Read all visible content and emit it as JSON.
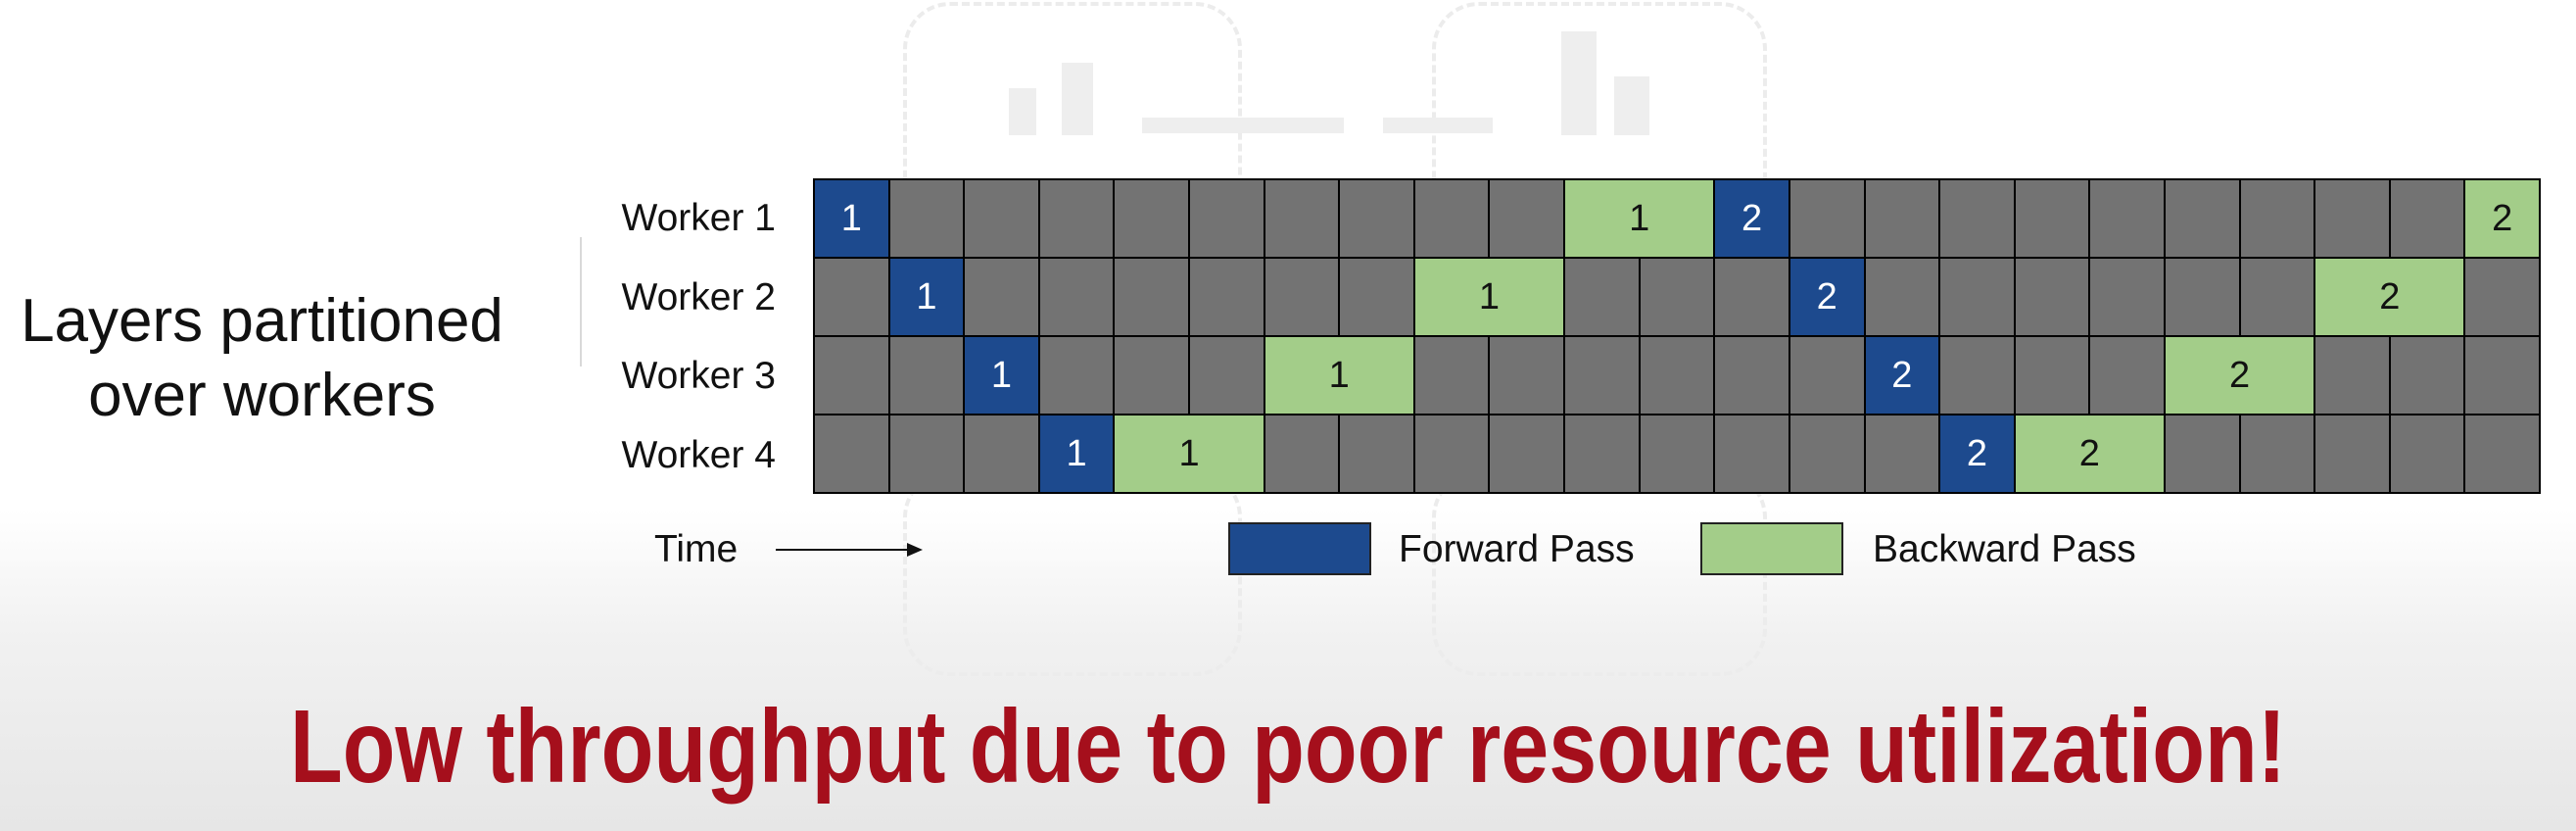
{
  "left_caption": {
    "line1": "Layers partitioned",
    "line2": "over workers"
  },
  "workers": [
    "Worker 1",
    "Worker 2",
    "Worker 3",
    "Worker 4"
  ],
  "columns": 23,
  "schedule": [
    [
      {
        "type": "fwd",
        "label": "1",
        "span": 1
      },
      {
        "type": "idle",
        "span": 9
      },
      {
        "type": "bwd",
        "label": "1",
        "span": 2
      },
      {
        "type": "fwd",
        "label": "2",
        "span": 1
      },
      {
        "type": "idle",
        "span": 9
      },
      {
        "type": "bwd",
        "label": "2",
        "span": 1
      }
    ],
    [
      {
        "type": "idle",
        "span": 1
      },
      {
        "type": "fwd",
        "label": "1",
        "span": 1
      },
      {
        "type": "idle",
        "span": 6
      },
      {
        "type": "bwd",
        "label": "1",
        "span": 2
      },
      {
        "type": "idle",
        "span": 3
      },
      {
        "type": "fwd",
        "label": "2",
        "span": 1
      },
      {
        "type": "idle",
        "span": 6
      },
      {
        "type": "bwd",
        "label": "2",
        "span": 2
      },
      {
        "type": "idle",
        "span": 1
      }
    ],
    [
      {
        "type": "idle",
        "span": 2
      },
      {
        "type": "fwd",
        "label": "1",
        "span": 1
      },
      {
        "type": "idle",
        "span": 3
      },
      {
        "type": "bwd",
        "label": "1",
        "span": 2
      },
      {
        "type": "idle",
        "span": 6
      },
      {
        "type": "fwd",
        "label": "2",
        "span": 1
      },
      {
        "type": "idle",
        "span": 3
      },
      {
        "type": "bwd",
        "label": "2",
        "span": 2
      },
      {
        "type": "idle",
        "span": 3
      }
    ],
    [
      {
        "type": "idle",
        "span": 3
      },
      {
        "type": "fwd",
        "label": "1",
        "span": 1
      },
      {
        "type": "bwd",
        "label": "1",
        "span": 2
      },
      {
        "type": "idle",
        "span": 9
      },
      {
        "type": "fwd",
        "label": "2",
        "span": 1
      },
      {
        "type": "bwd",
        "label": "2",
        "span": 2
      },
      {
        "type": "idle",
        "span": 5
      }
    ]
  ],
  "axis": {
    "time_label": "Time"
  },
  "legend": {
    "forward": "Forward Pass",
    "backward": "Backward Pass"
  },
  "colors": {
    "forward": "#1d4a8e",
    "backward": "#a3cd89",
    "idle": "#737373",
    "headline": "#a50f1c"
  },
  "headline": "Low throughput due to poor resource utilization!"
}
